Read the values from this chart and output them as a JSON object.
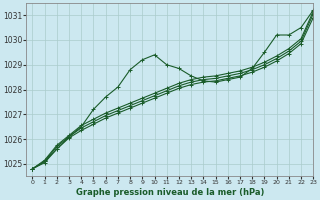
{
  "title": "Graphe pression niveau de la mer (hPa)",
  "background_color": "#cce8f0",
  "grid_color": "#aacccc",
  "line_color": "#1a5c2a",
  "xlim": [
    -0.5,
    23
  ],
  "ylim": [
    1024.5,
    1031.5
  ],
  "xticks": [
    0,
    1,
    2,
    3,
    4,
    5,
    6,
    7,
    8,
    9,
    10,
    11,
    12,
    13,
    14,
    15,
    16,
    17,
    18,
    19,
    20,
    21,
    22,
    23
  ],
  "yticks": [
    1025,
    1026,
    1027,
    1028,
    1029,
    1030,
    1031
  ],
  "series": [
    [
      1024.8,
      1025.1,
      1025.6,
      1026.1,
      1026.5,
      1027.2,
      1027.7,
      1028.1,
      1028.8,
      1029.2,
      1029.4,
      1029.0,
      1028.85,
      1028.55,
      1028.35,
      1028.3,
      1028.4,
      1028.5,
      1028.85,
      1029.5,
      1030.2,
      1030.2,
      1030.5,
      1031.2
    ],
    [
      1024.8,
      1025.05,
      1025.6,
      1026.05,
      1026.35,
      1026.6,
      1026.85,
      1027.05,
      1027.25,
      1027.45,
      1027.65,
      1027.85,
      1028.05,
      1028.2,
      1028.3,
      1028.35,
      1028.45,
      1028.55,
      1028.7,
      1028.9,
      1029.15,
      1029.45,
      1029.85,
      1030.9
    ],
    [
      1024.8,
      1025.1,
      1025.7,
      1026.1,
      1026.45,
      1026.7,
      1026.95,
      1027.15,
      1027.35,
      1027.55,
      1027.75,
      1027.95,
      1028.15,
      1028.3,
      1028.4,
      1028.45,
      1028.55,
      1028.65,
      1028.8,
      1029.0,
      1029.25,
      1029.55,
      1029.95,
      1031.05
    ],
    [
      1024.8,
      1025.15,
      1025.75,
      1026.15,
      1026.55,
      1026.8,
      1027.05,
      1027.25,
      1027.45,
      1027.65,
      1027.85,
      1028.05,
      1028.25,
      1028.4,
      1028.5,
      1028.55,
      1028.65,
      1028.75,
      1028.9,
      1029.1,
      1029.35,
      1029.65,
      1030.05,
      1031.15
    ]
  ]
}
